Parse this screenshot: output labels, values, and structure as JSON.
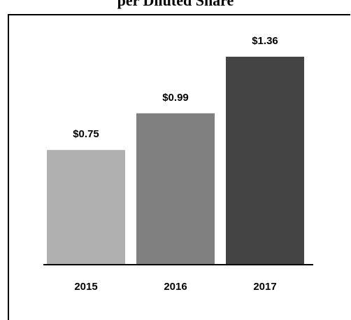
{
  "chart_data": {
    "type": "bar",
    "title": "per Diluted Share",
    "categories": [
      "2015",
      "2016",
      "2017"
    ],
    "values": [
      0.75,
      0.99,
      1.36
    ],
    "value_labels": [
      "$0.75",
      "$0.99",
      "$1.36"
    ],
    "colors": [
      "#b0b0b0",
      "#808080",
      "#444444"
    ],
    "xlabel": "",
    "ylabel": "",
    "ylim": [
      0,
      1.36
    ],
    "grid": false,
    "legend": "none"
  }
}
